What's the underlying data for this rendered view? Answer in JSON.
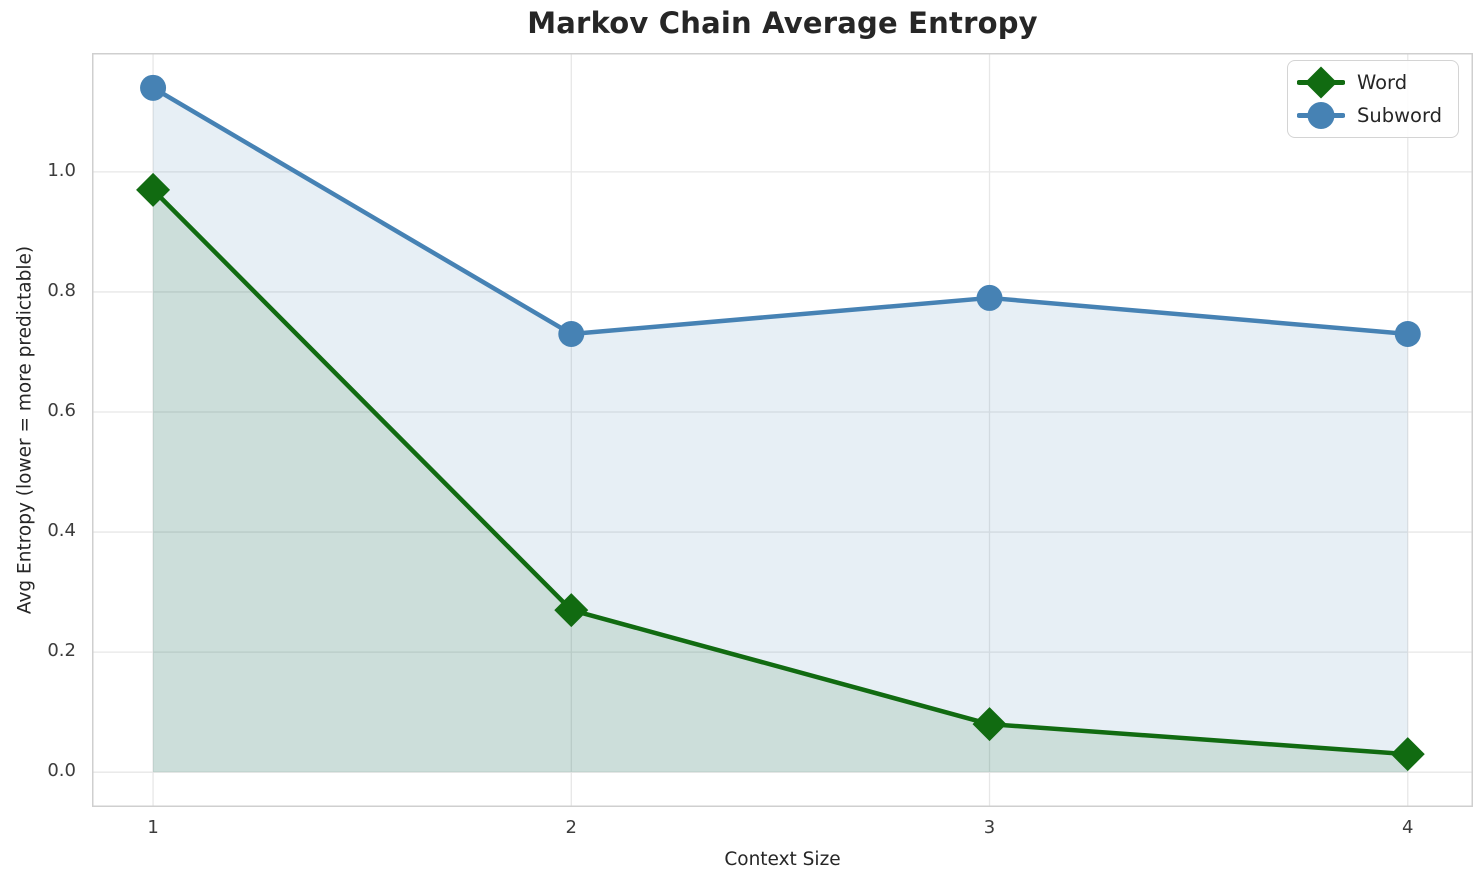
{
  "figure": {
    "background": "#ffffff",
    "spine_color": "#cfcfcf",
    "grid_color": "#e7e7e7",
    "text_color": "#262626",
    "tick_color": "#3c3c3c"
  },
  "chart_data": {
    "type": "line",
    "title": "Markov Chain Average Entropy",
    "xlabel": "Context Size",
    "ylabel": "Avg Entropy (lower = more predictable)",
    "x": [
      1,
      2,
      3,
      4
    ],
    "series": [
      {
        "name": "Word",
        "values": [
          0.97,
          0.27,
          0.08,
          0.03
        ],
        "color": "#116b11",
        "fill_color": "rgba(17, 107, 17, 0.13)",
        "marker": "diamond"
      },
      {
        "name": "Subword",
        "values": [
          1.14,
          0.73,
          0.79,
          0.73
        ],
        "color": "#4682b4",
        "fill_color": "rgba(70, 130, 180, 0.13)",
        "marker": "circle"
      }
    ],
    "xticks": [
      {
        "value": 1,
        "label": "1"
      },
      {
        "value": 2,
        "label": "2"
      },
      {
        "value": 3,
        "label": "3"
      },
      {
        "value": 4,
        "label": "4"
      }
    ],
    "yticks": [
      {
        "value": 0.0,
        "label": "0.0"
      },
      {
        "value": 0.2,
        "label": "0.2"
      },
      {
        "value": 0.4,
        "label": "0.4"
      },
      {
        "value": 0.6,
        "label": "0.6"
      },
      {
        "value": 0.8,
        "label": "0.8"
      },
      {
        "value": 1.0,
        "label": "1.0"
      }
    ],
    "xlim": [
      0.854,
      4.156
    ],
    "ylim": [
      -0.058,
      1.198
    ],
    "grid": true,
    "area_fill": true,
    "area_baseline": 0,
    "legend": {
      "position": "upper right",
      "entries": [
        "Word",
        "Subword"
      ]
    }
  }
}
